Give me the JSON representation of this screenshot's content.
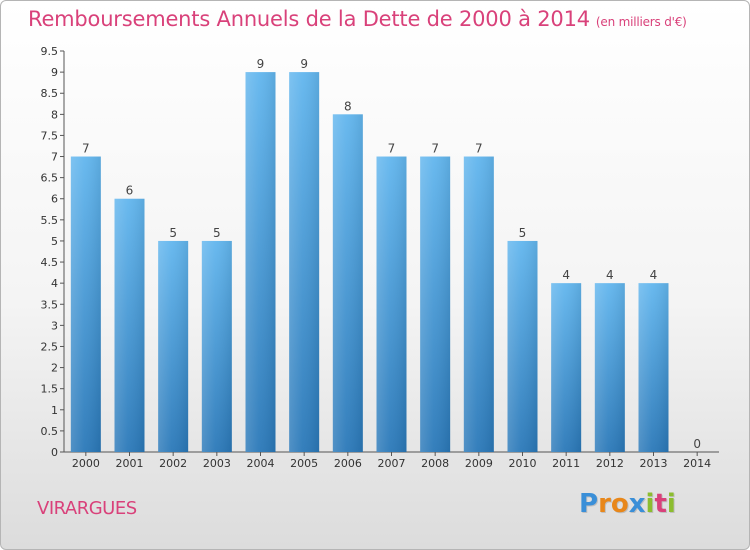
{
  "header": {
    "title": "Remboursements Annuels de la Dette de 2000 à 2014",
    "unit": "(en milliers d'€)"
  },
  "footer": {
    "commune": "VIRARGUES",
    "logo_letters": [
      "P",
      "r",
      "o",
      "x",
      "i",
      "t",
      "i"
    ]
  },
  "colors": {
    "title": "#d9417a",
    "bar_top": "#62b6ee",
    "bar_bottom": "#2a78b8",
    "logo": [
      "#3a8fd8",
      "#e8871a",
      "#e8871a",
      "#3a8fd8",
      "#8cbd2f",
      "#d9417a",
      "#8cbd2f"
    ]
  },
  "chart_data": {
    "type": "bar",
    "title": "Remboursements Annuels de la Dette de 2000 à 2014",
    "xlabel": "",
    "ylabel": "",
    "categories": [
      "2000",
      "2001",
      "2002",
      "2003",
      "2004",
      "2005",
      "2006",
      "2007",
      "2008",
      "2009",
      "2010",
      "2011",
      "2012",
      "2013",
      "2014"
    ],
    "values": [
      7,
      6,
      5,
      5,
      9,
      9,
      8,
      7,
      7,
      7,
      5,
      4,
      4,
      4,
      0
    ],
    "ylim": [
      0,
      9.5
    ],
    "yticks": [
      0,
      0.5,
      1,
      1.5,
      2,
      2.5,
      3,
      3.5,
      4,
      4.5,
      5,
      5.5,
      6,
      6.5,
      7,
      7.5,
      8,
      8.5,
      9,
      9.5
    ],
    "ytick_labels": [
      "0",
      "0.5",
      "1",
      "1.5",
      "2",
      "2.5",
      "3",
      "3.5",
      "4",
      "4.5",
      "5",
      "5.5",
      "6",
      "6.5",
      "7",
      "7.5",
      "8",
      "8.5",
      "9",
      "9.5"
    ],
    "grid": false,
    "legend": "none"
  }
}
